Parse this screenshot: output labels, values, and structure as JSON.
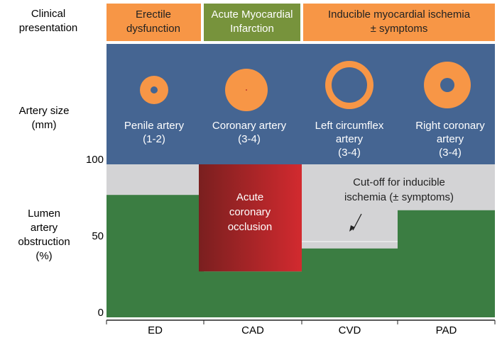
{
  "row_labels": {
    "clinical": [
      "Clinical",
      "presentation"
    ],
    "artery_size": [
      "Artery size",
      "(mm)"
    ],
    "obstruction": [
      "Lumen",
      "artery",
      "obstruction",
      "(%)"
    ]
  },
  "header": [
    {
      "lines": [
        "Erectile",
        "dysfunction"
      ]
    },
    {
      "lines": [
        "Acute Myocardial",
        "Infarction"
      ]
    },
    {
      "lines": [
        "Inducible myocardial ischemia",
        "± symptoms"
      ]
    }
  ],
  "arteries": [
    {
      "lines": [
        "Penile artery",
        "(1-2)"
      ]
    },
    {
      "lines": [
        "Coronary artery",
        "(3-4)"
      ]
    },
    {
      "lines": [
        "Left circumflex",
        "artery",
        "(3-4)"
      ]
    },
    {
      "lines": [
        "Right coronary",
        "artery",
        "(3-4)"
      ]
    }
  ],
  "chart": {
    "categories": [
      "ED",
      "CAD",
      "CVD",
      "PAD"
    ],
    "values": [
      80,
      30,
      45,
      70
    ],
    "ylim": [
      0,
      100
    ],
    "yticks": [
      0,
      50,
      100
    ],
    "occlusion": [
      "Acute",
      "coronary",
      "occlusion"
    ],
    "cutoff": [
      "Cut-off  for inducible",
      "ischemia (± symptoms)"
    ]
  }
}
